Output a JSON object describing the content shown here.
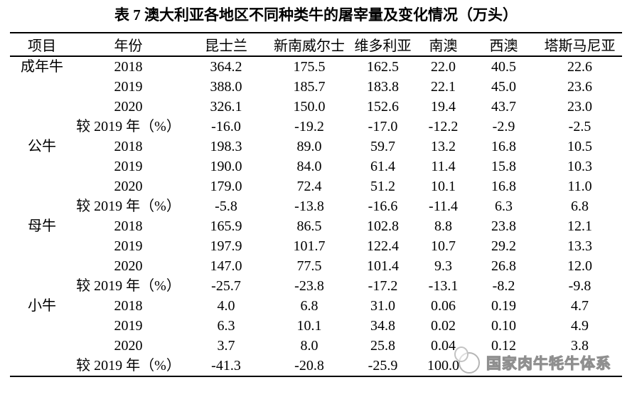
{
  "title": "表 7 澳大利亚各地区不同种类牛的屠宰量及变化情况（万头）",
  "table": {
    "columns": [
      "项目",
      "年份",
      "昆士兰",
      "新南威尔士",
      "维多利亚",
      "南澳",
      "西澳",
      "塔斯马尼亚"
    ],
    "groups": [
      {
        "item": "成年牛",
        "rows": [
          {
            "year": "2018",
            "values": [
              "364.2",
              "175.5",
              "162.5",
              "22.0",
              "40.5",
              "22.6"
            ]
          },
          {
            "year": "2019",
            "values": [
              "388.0",
              "185.7",
              "183.8",
              "22.1",
              "45.0",
              "23.6"
            ]
          },
          {
            "year": "2020",
            "values": [
              "326.1",
              "150.0",
              "152.6",
              "19.4",
              "43.7",
              "23.0"
            ]
          },
          {
            "year": "较 2019 年（%）",
            "values": [
              "-16.0",
              "-19.2",
              "-17.0",
              "-12.2",
              "-2.9",
              "-2.5"
            ]
          }
        ]
      },
      {
        "item": "公牛",
        "rows": [
          {
            "year": "2018",
            "values": [
              "198.3",
              "89.0",
              "59.7",
              "13.2",
              "16.8",
              "10.5"
            ]
          },
          {
            "year": "2019",
            "values": [
              "190.0",
              "84.0",
              "61.4",
              "11.4",
              "15.8",
              "10.3"
            ]
          },
          {
            "year": "2020",
            "values": [
              "179.0",
              "72.4",
              "51.2",
              "10.1",
              "16.8",
              "11.0"
            ]
          },
          {
            "year": "较 2019 年（%）",
            "values": [
              "-5.8",
              "-13.8",
              "-16.6",
              "-11.4",
              "6.3",
              "6.8"
            ]
          }
        ]
      },
      {
        "item": "母牛",
        "rows": [
          {
            "year": "2018",
            "values": [
              "165.9",
              "86.5",
              "102.8",
              "8.8",
              "23.8",
              "12.1"
            ]
          },
          {
            "year": "2019",
            "values": [
              "197.9",
              "101.7",
              "122.4",
              "10.7",
              "29.2",
              "13.3"
            ]
          },
          {
            "year": "2020",
            "values": [
              "147.0",
              "77.5",
              "101.4",
              "9.3",
              "26.8",
              "12.0"
            ]
          },
          {
            "year": "较 2019 年（%）",
            "values": [
              "-25.7",
              "-23.8",
              "-17.2",
              "-13.1",
              "-8.2",
              "-9.8"
            ]
          }
        ]
      },
      {
        "item": "小牛",
        "rows": [
          {
            "year": "2018",
            "values": [
              "4.0",
              "6.8",
              "31.0",
              "0.06",
              "0.19",
              "4.7"
            ]
          },
          {
            "year": "2019",
            "values": [
              "6.3",
              "10.1",
              "34.8",
              "0.02",
              "0.10",
              "4.9"
            ]
          },
          {
            "year": "2020",
            "values": [
              "3.7",
              "8.0",
              "25.8",
              "0.04",
              "0.12",
              "3.8"
            ]
          },
          {
            "year": "较 2019 年（%）",
            "values": [
              "-41.3",
              "-20.8",
              "-25.9",
              "100.0",
              "",
              ""
            ]
          }
        ]
      }
    ]
  },
  "watermark": {
    "text": "国家肉牛牦牛体系",
    "logo": "cattle-emblem",
    "color": "#8f8f8f"
  }
}
